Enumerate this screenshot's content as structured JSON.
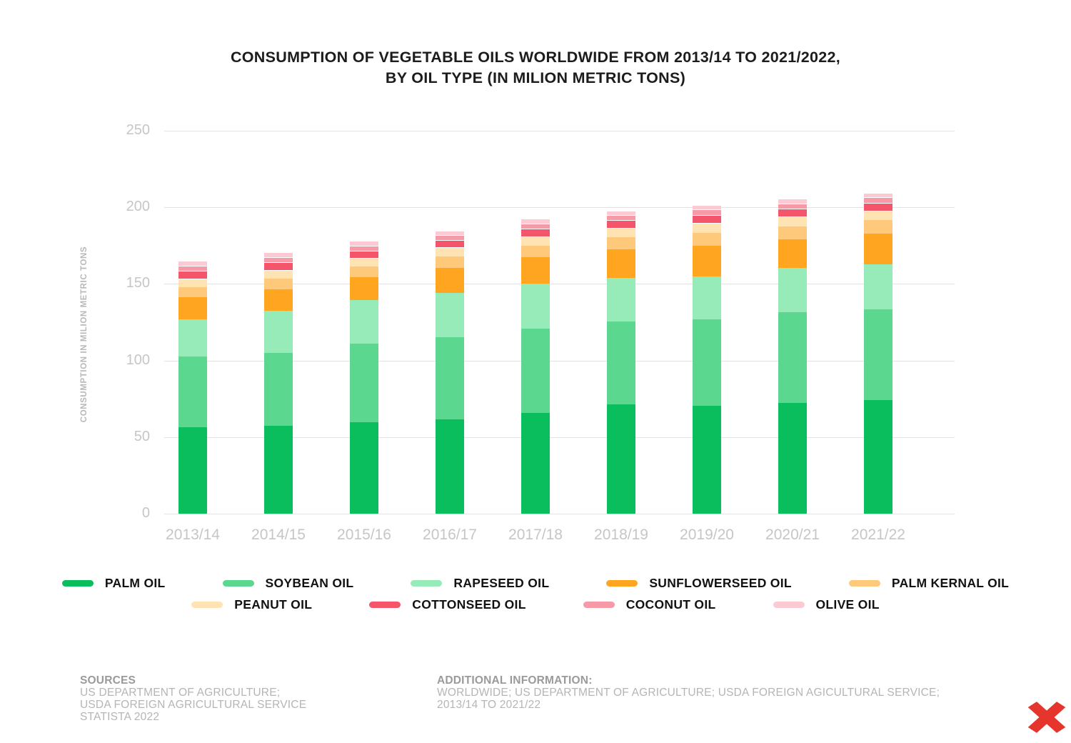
{
  "chart": {
    "title_line1": "CONSUMPTION OF VEGETABLE OILS WORLDWIDE FROM 2013/14 TO 2021/2022,",
    "title_line2": "BY OIL TYPE (IN MILION METRIC TONS)",
    "ylabel": "CONSUMPTION IN MILION METRIC TONS"
  },
  "chart_data": {
    "type": "bar",
    "stacked": true,
    "title": "CONSUMPTION OF VEGETABLE OILS WORLDWIDE FROM 2013/14 TO 2021/2022, BY OIL TYPE (IN MILION METRIC TONS)",
    "xlabel": "",
    "ylabel": "CONSUMPTION IN MILION METRIC TONS",
    "ylim": [
      0,
      250
    ],
    "yticks": [
      0,
      50,
      100,
      150,
      200,
      250
    ],
    "grid": true,
    "legend_position": "bottom",
    "categories": [
      "2013/14",
      "2014/15",
      "2015/16",
      "2016/17",
      "2017/18",
      "2018/19",
      "2019/20",
      "2020/21",
      "2021/22"
    ],
    "series": [
      {
        "name": "PALM OIL",
        "color": "#0abe5d",
        "values": [
          56.5,
          57.5,
          59.5,
          61.5,
          66.0,
          71.5,
          70.5,
          72.5,
          74.0
        ]
      },
      {
        "name": "SOYBEAN OIL",
        "color": "#5cd790",
        "values": [
          46.0,
          47.5,
          51.5,
          53.5,
          55.0,
          54.0,
          56.5,
          59.0,
          59.5
        ]
      },
      {
        "name": "RAPESEED OIL",
        "color": "#96ebb8",
        "values": [
          24.5,
          27.5,
          28.5,
          29.0,
          29.0,
          28.5,
          28.0,
          29.0,
          29.5
        ]
      },
      {
        "name": "SUNFLOWERSEED OIL",
        "color": "#ffa51f",
        "values": [
          14.5,
          14.0,
          15.0,
          16.5,
          17.5,
          18.5,
          20.0,
          18.5,
          20.0
        ]
      },
      {
        "name": "PALM KERNAL OIL",
        "color": "#ffc97c",
        "values": [
          6.5,
          7.0,
          7.0,
          7.5,
          7.5,
          8.0,
          8.5,
          8.5,
          8.5
        ]
      },
      {
        "name": "PEANUT OIL",
        "color": "#ffe3b3",
        "values": [
          5.5,
          5.5,
          5.5,
          6.0,
          6.0,
          6.0,
          6.5,
          6.5,
          6.5
        ]
      },
      {
        "name": "COTTONSEED OIL",
        "color": "#f4556a",
        "values": [
          5.0,
          5.0,
          4.5,
          4.5,
          5.0,
          5.0,
          5.0,
          5.0,
          5.0
        ]
      },
      {
        "name": "COCONUT OIL",
        "color": "#f79aa8",
        "values": [
          3.5,
          3.5,
          3.5,
          3.5,
          3.5,
          3.5,
          3.5,
          3.5,
          3.5
        ]
      },
      {
        "name": "OLIVE OIL",
        "color": "#fbcad3",
        "values": [
          3.0,
          3.0,
          3.0,
          2.5,
          3.0,
          3.0,
          3.0,
          3.0,
          3.0
        ]
      }
    ],
    "legend_rows": [
      [
        0,
        1,
        2,
        3,
        4
      ],
      [
        5,
        6,
        7,
        8
      ]
    ]
  },
  "footer": {
    "sources_heading": "SOURCES",
    "sources_lines": [
      "US DEPARTMENT OF AGRICULTURE;",
      "USDA FOREIGN AGRICULTURAL SERVICE",
      "STATISTA 2022"
    ],
    "additional_heading": "ADDITIONAL INFORMATION:",
    "additional_lines": [
      "WORLDWIDE; US DEPARTMENT OF AGRICULTURE; USDA FOREIGN AGICULTURAL SERVICE;",
      "2013/14 TO 2021/22"
    ]
  },
  "logo": {
    "icon": "red-x-logo",
    "color": "#e6352c"
  }
}
